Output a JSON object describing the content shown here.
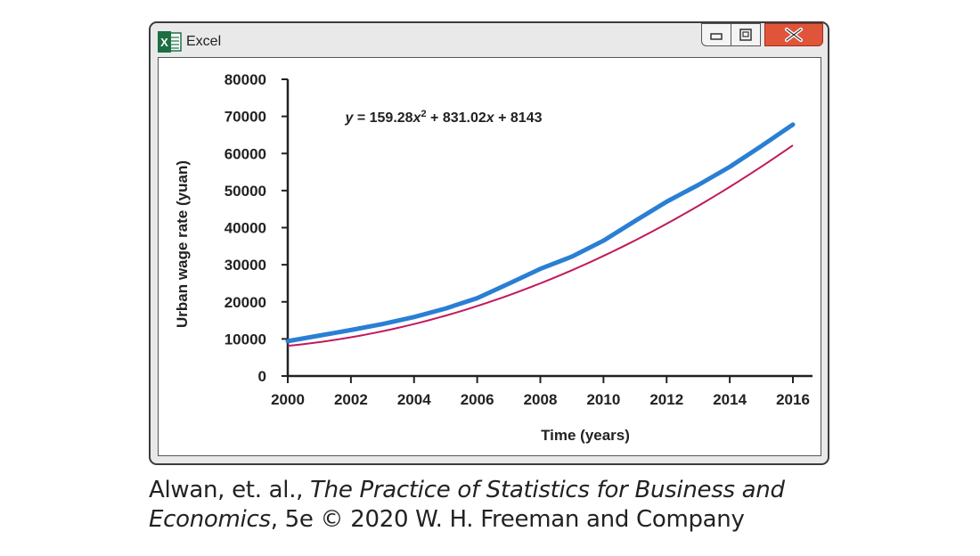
{
  "window": {
    "title": "Excel",
    "icon_letter": "X",
    "icon": "excel-icon",
    "controls": [
      "minimize-icon",
      "maximize-icon",
      "close-icon"
    ],
    "close_color": "#e0553a"
  },
  "chart_data": {
    "type": "line",
    "xlabel": "Time (years)",
    "ylabel": "Urban wage rate (yuan)",
    "xlim": [
      2000,
      2016
    ],
    "ylim": [
      0,
      80000
    ],
    "xticks": [
      "2000",
      "2002",
      "2004",
      "2006",
      "2008",
      "2010",
      "2012",
      "2014",
      "2016"
    ],
    "yticks": [
      "0",
      "10000",
      "20000",
      "30000",
      "40000",
      "50000",
      "60000",
      "70000",
      "80000"
    ],
    "annotation": {
      "parts": [
        "y",
        " = 159.28",
        "x",
        "2",
        " + 831.02",
        "x",
        " + 8143"
      ]
    },
    "trendline": {
      "a": 159.28,
      "b": 831.02,
      "c": 8143,
      "color": "#c2185b"
    },
    "series": [
      {
        "color": "#2a7fd4",
        "x": [
          2000,
          2001,
          2002,
          2003,
          2004,
          2005,
          2006,
          2007,
          2008,
          2009,
          2010,
          2011,
          2012,
          2013,
          2014,
          2015,
          2016
        ],
        "y": [
          9400,
          10900,
          12400,
          14000,
          15900,
          18200,
          21000,
          24900,
          28900,
          32200,
          36500,
          41800,
          47000,
          51500,
          56400,
          62000,
          67800
        ]
      }
    ]
  },
  "caption": {
    "line1_authors": "Alwan, et. al., ",
    "line1_title": "The Practice of Statistics for Business and",
    "line2_title": "Economics",
    "line2_rest": ", 5e © 2020 W. H. Freeman and Company"
  }
}
